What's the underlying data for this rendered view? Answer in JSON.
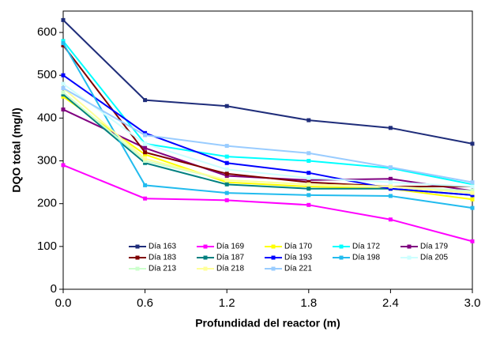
{
  "chart_data": {
    "type": "line",
    "x_label": "Profundidad del reactor (m)",
    "y_label": "DQO total (mg/l)",
    "x": [
      0,
      0.6,
      1.2,
      1.8,
      2.4,
      3.0
    ],
    "xlim": [
      0,
      3.0
    ],
    "xticks": [
      {
        "value": 0,
        "label": "0.0"
      },
      0.6,
      1.2,
      1.8,
      2.4,
      {
        "value": 3.0,
        "label": "3.0"
      }
    ],
    "ylim": [
      0,
      650
    ],
    "yticks": [
      0,
      100,
      200,
      300,
      400,
      500,
      600
    ],
    "grid": false,
    "legend": "bottom",
    "series": [
      {
        "name": "Día 163",
        "color": "#1f2d7a",
        "values": [
          629,
          442,
          428,
          395,
          377,
          340
        ]
      },
      {
        "name": "Día 169",
        "color": "#ff00ff",
        "values": [
          290,
          212,
          208,
          197,
          163,
          112
        ]
      },
      {
        "name": "Día 170",
        "color": "#ffff00",
        "values": [
          450,
          315,
          250,
          240,
          235,
          210
        ]
      },
      {
        "name": "Día 172",
        "color": "#00ffff",
        "values": [
          580,
          340,
          310,
          300,
          283,
          245
        ]
      },
      {
        "name": "Día 179",
        "color": "#800080",
        "values": [
          420,
          330,
          265,
          255,
          258,
          230
        ]
      },
      {
        "name": "Día 183",
        "color": "#800000",
        "values": [
          570,
          320,
          270,
          250,
          240,
          240
        ]
      },
      {
        "name": "Día 187",
        "color": "#008080",
        "values": [
          455,
          295,
          245,
          235,
          235,
          220
        ]
      },
      {
        "name": "Día 193",
        "color": "#0000ff",
        "values": [
          500,
          365,
          295,
          272,
          235,
          220
        ]
      },
      {
        "name": "Día 198",
        "color": "#22bbee",
        "values": [
          575,
          243,
          225,
          220,
          218,
          190
        ]
      },
      {
        "name": "Día 205",
        "color": "#ccffff",
        "values": [
          480,
          340,
          280,
          260,
          250,
          240
        ]
      },
      {
        "name": "Día 213",
        "color": "#ccffcc",
        "values": [
          460,
          300,
          255,
          245,
          240,
          230
        ]
      },
      {
        "name": "Día 218",
        "color": "#ffff99",
        "values": [
          470,
          305,
          255,
          245,
          240,
          225
        ]
      },
      {
        "name": "Día 221",
        "color": "#99ccff",
        "values": [
          470,
          360,
          335,
          318,
          285,
          250
        ]
      }
    ]
  }
}
